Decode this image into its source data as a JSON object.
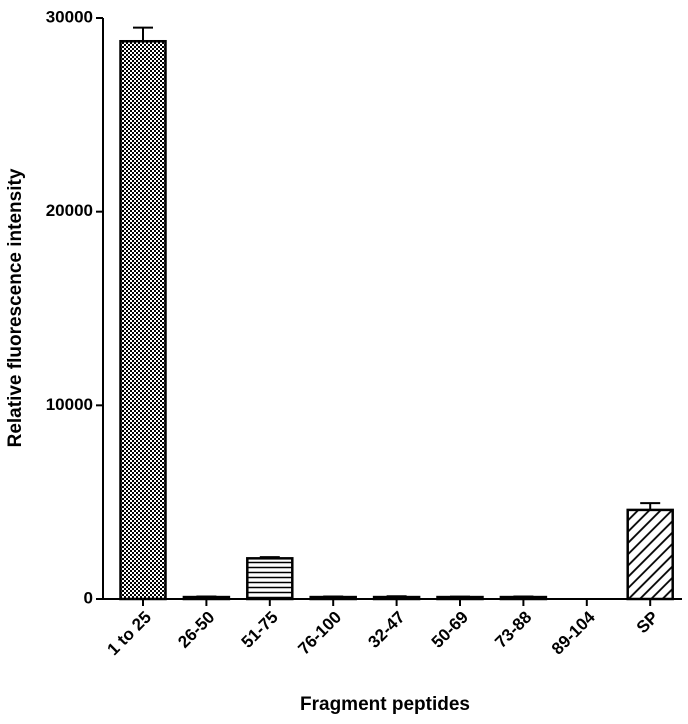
{
  "chart_data": {
    "type": "bar",
    "y_label": "Relative fluorescence intensity",
    "x_label": "Fragment peptides",
    "categories": [
      "1 to 25",
      "26-50",
      "51-75",
      "76-100",
      "32-47",
      "50-69",
      "73-88",
      "89-104",
      "SP"
    ],
    "values": [
      28800,
      100,
      2100,
      100,
      100,
      100,
      100,
      0,
      4600
    ],
    "errors": [
      700,
      30,
      60,
      30,
      40,
      20,
      30,
      0,
      350
    ],
    "patterns": [
      "crosshatch",
      "none",
      "horizontal",
      "none",
      "none",
      "none",
      "none",
      "none",
      "diagonal"
    ],
    "color": "#000000",
    "ylim": [
      0,
      30000
    ],
    "yticks": [
      0,
      10000,
      20000,
      30000
    ],
    "grid": false
  }
}
